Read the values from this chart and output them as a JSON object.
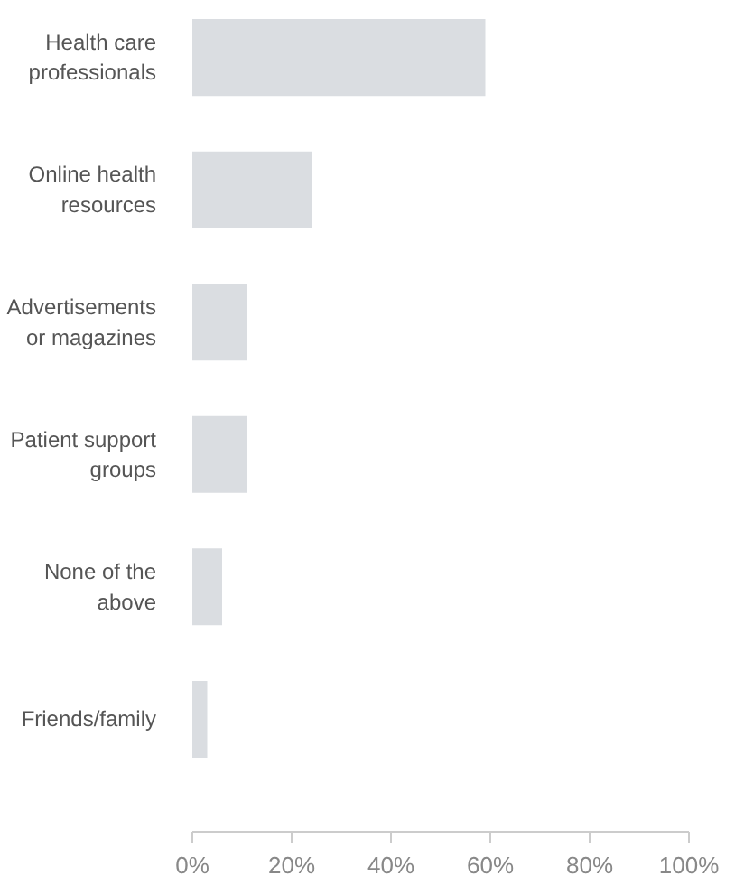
{
  "chart_data": {
    "type": "bar",
    "orientation": "horizontal",
    "categories": [
      "Health care professionals",
      "Online health resources",
      "Advertisements or magazines",
      "Patient support groups",
      "None of the above",
      "Friends/family"
    ],
    "values": [
      59,
      24,
      11,
      11,
      6,
      3
    ],
    "color": "#dadde1",
    "xlim": [
      0,
      100
    ],
    "xticks": [
      {
        "value": 0,
        "label": "0%"
      },
      {
        "value": 20,
        "label": "20%"
      },
      {
        "value": 40,
        "label": "40%"
      },
      {
        "value": 60,
        "label": "60%"
      },
      {
        "value": 80,
        "label": "80%"
      },
      {
        "value": 100,
        "label": "100%"
      }
    ],
    "grid": false
  }
}
